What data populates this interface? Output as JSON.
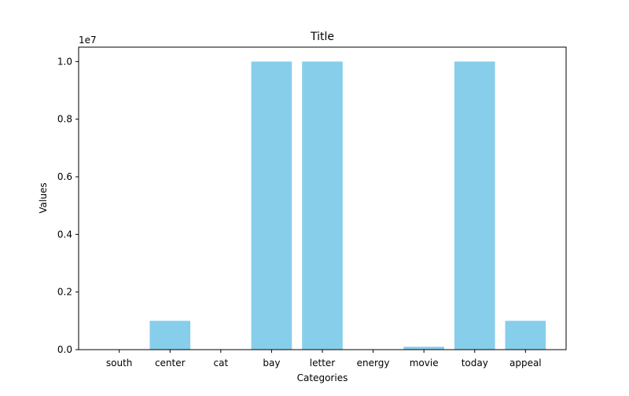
{
  "chart_data": {
    "type": "bar",
    "title": "Title",
    "xlabel": "Categories",
    "ylabel": "Values",
    "offset_label": "1e7",
    "categories": [
      "south",
      "center",
      "cat",
      "bay",
      "letter",
      "energy",
      "movie",
      "today",
      "appeal"
    ],
    "values": [
      10,
      1000000,
      1000,
      10000000,
      10000000,
      100,
      100000,
      10000000,
      1000000
    ],
    "ylim": [
      0,
      10500000
    ],
    "yticks": [
      0,
      2000000,
      4000000,
      6000000,
      8000000,
      10000000
    ],
    "ytick_labels": [
      "0.0",
      "0.2",
      "0.4",
      "0.6",
      "0.8",
      "1.0"
    ],
    "grid": false,
    "legend": "none",
    "bar_color": "#87ceeb"
  }
}
